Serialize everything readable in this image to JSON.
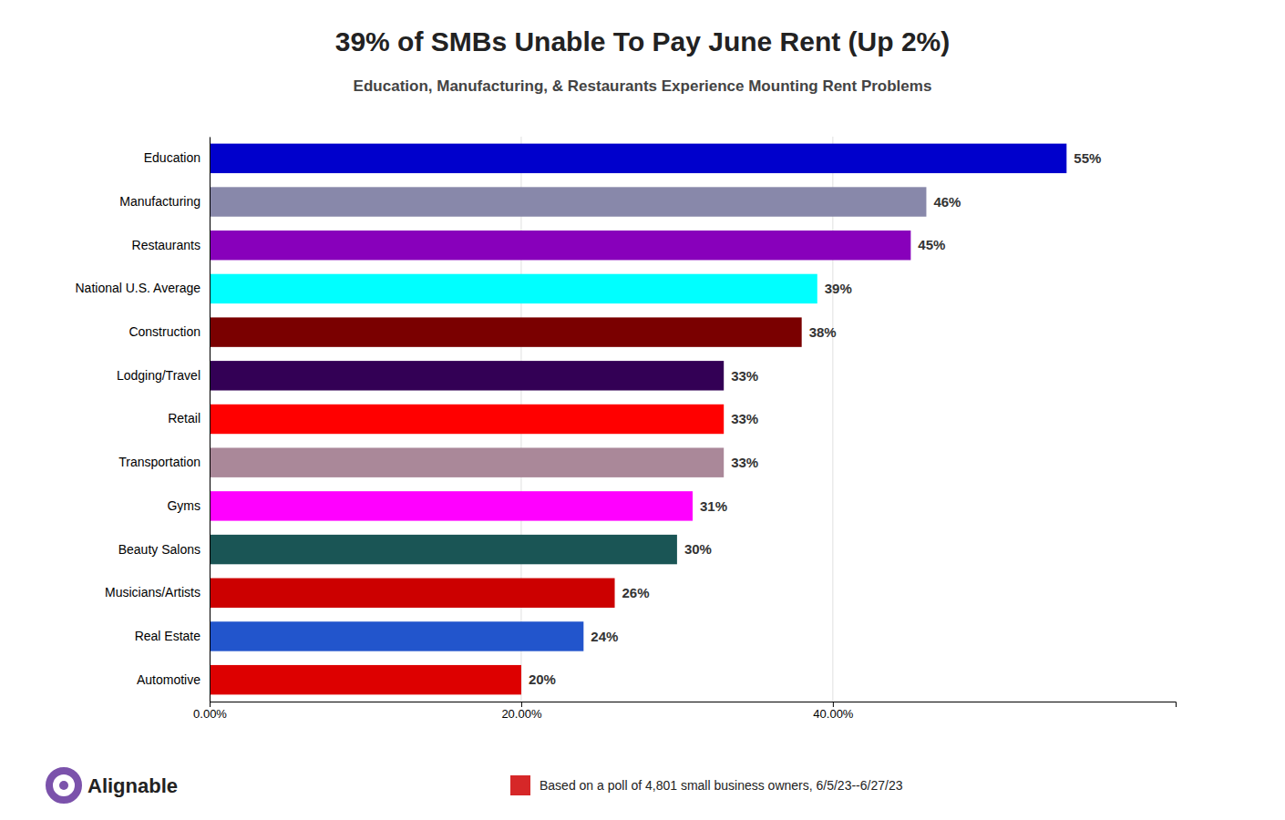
{
  "chart_data": {
    "type": "bar",
    "orientation": "horizontal",
    "title": "39% of SMBs Unable To Pay June Rent (Up 2%)",
    "subtitle": "Education, Manufacturing, & Restaurants Experience Mounting Rent Problems",
    "categories": [
      "Education",
      "Manufacturing",
      "Restaurants",
      "National U.S. Average",
      "Construction",
      "Lodging/Travel",
      "Retail",
      "Transportation",
      "Gyms",
      "Beauty Salons",
      "Musicians/Artists",
      "Real Estate",
      "Automotive"
    ],
    "values": [
      55,
      46,
      45,
      39,
      38,
      33,
      33,
      33,
      31,
      30,
      26,
      24,
      20
    ],
    "value_labels": [
      "55%",
      "46%",
      "45%",
      "39%",
      "38%",
      "33%",
      "33%",
      "33%",
      "31%",
      "30%",
      "26%",
      "24%",
      "20%"
    ],
    "colors": [
      "#0000cc",
      "#8888aa",
      "#8800bb",
      "#00ffff",
      "#7a0000",
      "#330055",
      "#ff0000",
      "#aa8899",
      "#ff00ff",
      "#1a5555",
      "#cc0000",
      "#2255cc",
      "#dd0000"
    ],
    "data_labels": true,
    "xlim": [
      0,
      62
    ],
    "xticks": [
      {
        "value": 0,
        "label": "0.00%"
      },
      {
        "value": 20,
        "label": "20.00%"
      },
      {
        "value": 40,
        "label": "40.00%"
      }
    ],
    "grid": true,
    "annotations": [
      "Based on a poll of 4,801 small business owners, 6/5/23--6/27/23",
      "Alignable"
    ]
  }
}
